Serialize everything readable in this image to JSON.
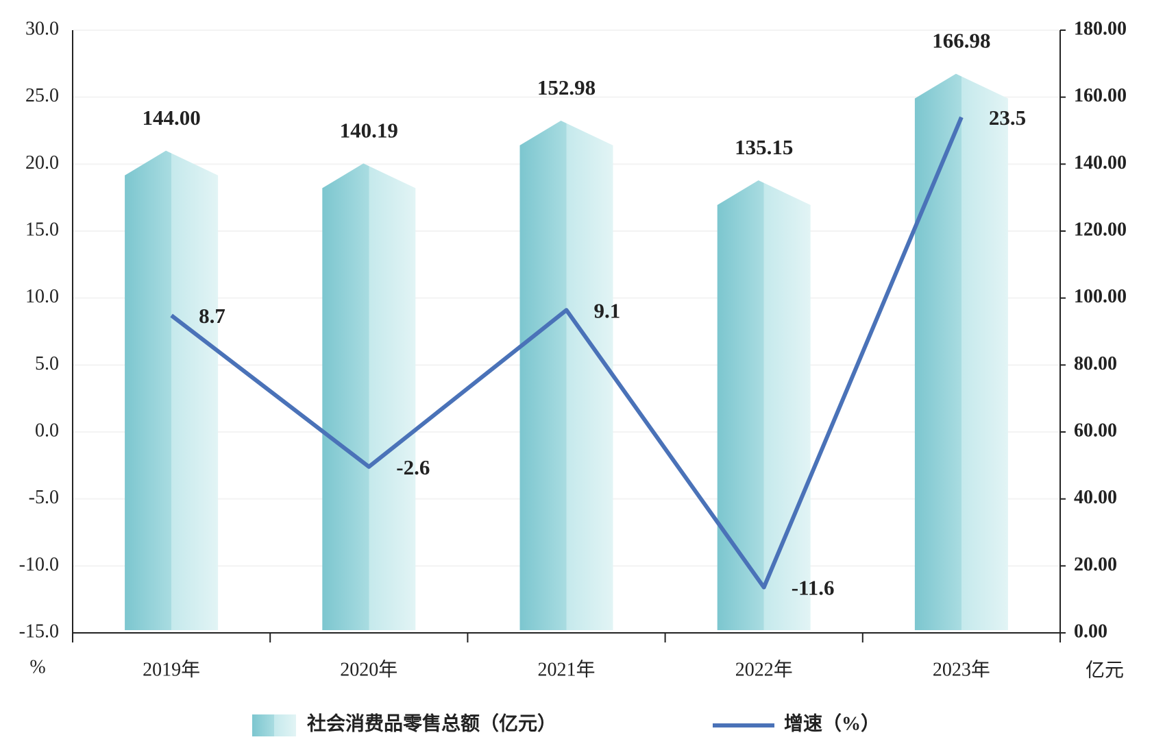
{
  "chart_data": {
    "type": "bar-line",
    "categories": [
      "2019年",
      "2020年",
      "2021年",
      "2022年",
      "2023年"
    ],
    "series": [
      {
        "name": "社会消费品零售总额（亿元）",
        "type": "bar",
        "axis": "y2",
        "color": "#8fd0d6",
        "values": [
          144.0,
          140.19,
          152.98,
          135.15,
          166.98
        ],
        "value_labels": [
          "144.00",
          "140.19",
          "152.98",
          "135.15",
          "166.98"
        ]
      },
      {
        "name": "增速（%）",
        "type": "line",
        "axis": "y",
        "color": "#4a72b8",
        "values": [
          8.7,
          -2.6,
          9.1,
          -11.6,
          23.5
        ]
      }
    ],
    "y_unit": "%",
    "y2_unit": "亿元",
    "ylim": [
      -15,
      30
    ],
    "yticks": [
      {
        "value": -15,
        "label": "-15.0"
      },
      {
        "value": -10,
        "label": "-10.0"
      },
      {
        "value": -5,
        "label": "-5.0"
      },
      {
        "value": 0,
        "label": "0.0"
      },
      {
        "value": 5,
        "label": "5.0"
      },
      {
        "value": 10,
        "label": "10.0"
      },
      {
        "value": 15,
        "label": "15.0"
      },
      {
        "value": 20,
        "label": "20.0"
      },
      {
        "value": 25,
        "label": "25.0"
      },
      {
        "value": 30,
        "label": "30.0"
      }
    ],
    "y2lim": [
      0,
      180
    ],
    "y2ticks": [
      {
        "value": 0,
        "label": "0.00"
      },
      {
        "value": 20,
        "label": "20.00"
      },
      {
        "value": 40,
        "label": "40.00"
      },
      {
        "value": 60,
        "label": "60.00"
      },
      {
        "value": 80,
        "label": "80.00"
      },
      {
        "value": 100,
        "label": "100.00"
      },
      {
        "value": 120,
        "label": "120.00"
      },
      {
        "value": 140,
        "label": "140.00"
      },
      {
        "value": 160,
        "label": "160.00"
      },
      {
        "value": 180,
        "label": "180.00"
      }
    ]
  }
}
